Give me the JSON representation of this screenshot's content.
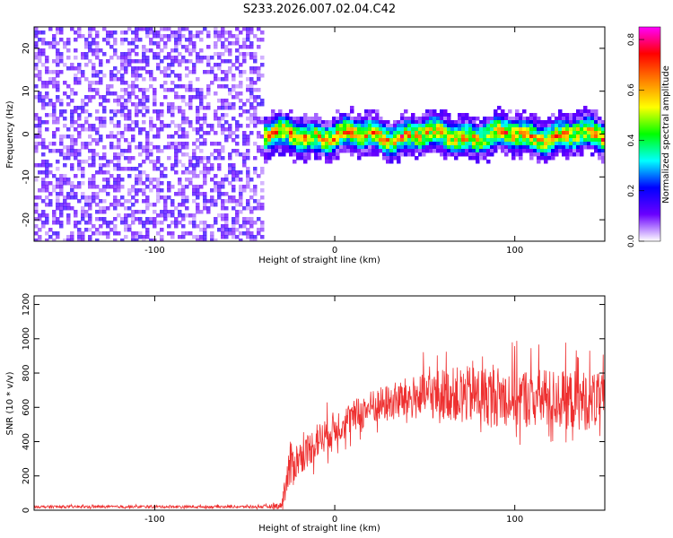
{
  "title": "S233.2026.007.02.04.C42",
  "chart_data": [
    {
      "type": "heatmap",
      "xlabel": "Height of straight line (km)",
      "ylabel": "Frequency (Hz)",
      "xlim": [
        -167,
        150
      ],
      "ylim": [
        -25,
        25
      ],
      "xticks": [
        -100,
        0,
        100
      ],
      "yticks": [
        -20,
        -10,
        0,
        10,
        20
      ],
      "colorbar": {
        "label": "Normalized spectral amplitude",
        "range": [
          0,
          0.85
        ],
        "ticks": [
          "0.0",
          "0.2",
          "0.4",
          "0.6",
          "0.8"
        ],
        "colormap": [
          "#ffffff",
          "#6a00ff",
          "#0000ff",
          "#00ffff",
          "#00ff00",
          "#ffff00",
          "#ff8000",
          "#ff0000",
          "#ff00ff"
        ]
      },
      "regions": [
        {
          "label": "noise",
          "x": [
            -167,
            -40
          ],
          "y": [
            -25,
            25
          ],
          "amplitude": [
            0.0,
            0.15
          ]
        },
        {
          "label": "signal band",
          "x": [
            -40,
            150
          ],
          "center_freq_hz": 0,
          "half_width_hz": 4,
          "amplitude": [
            0.1,
            0.8
          ]
        }
      ]
    },
    {
      "type": "line",
      "xlabel": "Height of straight line (km)",
      "ylabel": "SNR (10 * v/v)",
      "xlim": [
        -167,
        150
      ],
      "ylim": [
        0,
        1250
      ],
      "xticks": [
        -100,
        0,
        100
      ],
      "yticks": [
        0,
        200,
        400,
        600,
        800,
        1000,
        1200
      ],
      "color": "#ee3030",
      "envelope": {
        "x": [
          -167,
          -40,
          -30,
          -25,
          -20,
          -10,
          0,
          20,
          40,
          60,
          80,
          100,
          120,
          140,
          150
        ],
        "mean": [
          20,
          20,
          25,
          250,
          300,
          400,
          480,
          600,
          650,
          680,
          670,
          660,
          650,
          640,
          640
        ],
        "spread": [
          15,
          15,
          40,
          300,
          200,
          200,
          200,
          200,
          250,
          300,
          350,
          350,
          350,
          350,
          300
        ]
      }
    }
  ]
}
